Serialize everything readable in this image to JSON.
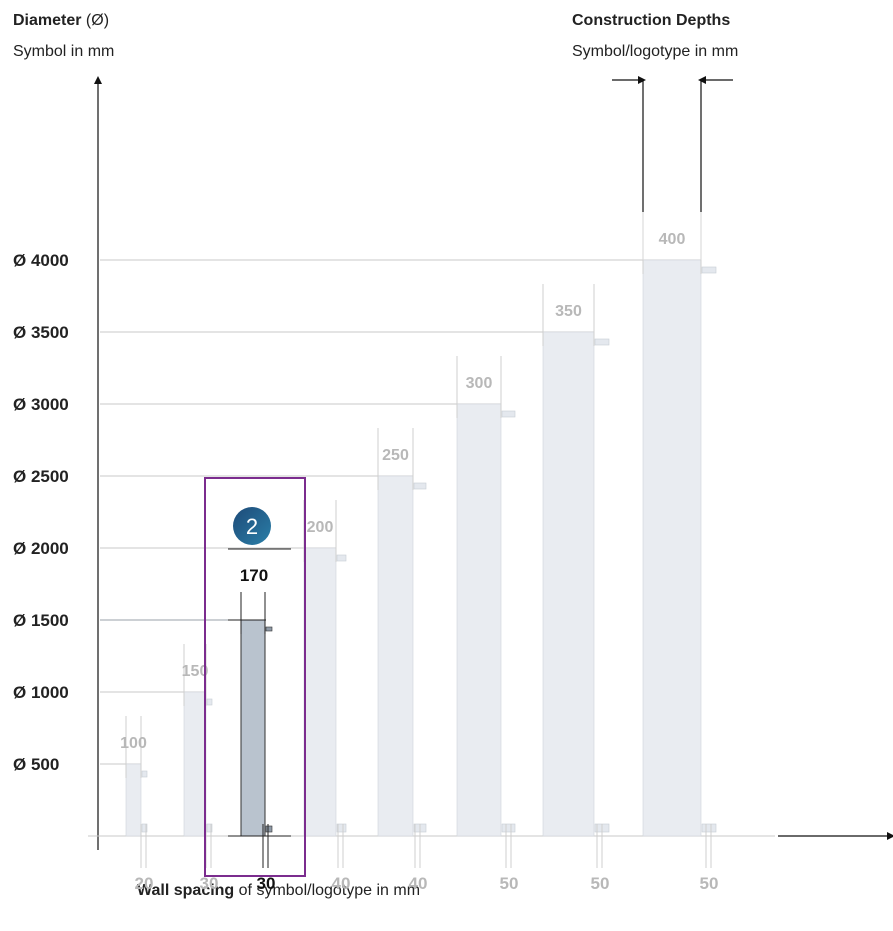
{
  "y_axis_title": {
    "bold": "Diameter",
    "rest": " (Ø)"
  },
  "y_axis_subtitle": "Symbol in mm",
  "right_title": "Construction Depths",
  "right_subtitle": "Symbol/logotype in mm",
  "x_axis_title": {
    "bold": "Wall spacing",
    "rest": " of symbol/logotype in mm"
  },
  "highlight": {
    "badge": "2",
    "depth": "170",
    "spacing": "30"
  },
  "colors": {
    "bar": "#e9ecf1",
    "bar_highlight": "#b9c3ce",
    "faded_text": "#b8b8b8",
    "highlight_box": "#7b2c8e",
    "badge": "#2a7fa8"
  },
  "chart_data": {
    "type": "bar",
    "ylabel": "Diameter (Ø) Symbol in mm",
    "xlabel": "Wall spacing of symbol/logotype in mm",
    "ylim": [
      0,
      4000
    ],
    "y_ticks": [
      {
        "value": 500,
        "label": "Ø   500"
      },
      {
        "value": 1000,
        "label": "Ø 1000"
      },
      {
        "value": 1500,
        "label": "Ø 1500"
      },
      {
        "value": 2000,
        "label": "Ø 2000"
      },
      {
        "value": 2500,
        "label": "Ø 2500"
      },
      {
        "value": 3000,
        "label": "Ø 3000"
      },
      {
        "value": 3500,
        "label": "Ø 3500"
      },
      {
        "value": 4000,
        "label": "Ø 4000"
      }
    ],
    "bars": [
      {
        "diameter": 500,
        "depth": "100",
        "spacing": "20",
        "highlight": false
      },
      {
        "diameter": 1000,
        "depth": "150",
        "spacing": "30",
        "highlight": false
      },
      {
        "diameter": 1500,
        "depth": "170",
        "spacing": "30",
        "highlight": true
      },
      {
        "diameter": 2000,
        "depth": "200",
        "spacing": "40",
        "highlight": false
      },
      {
        "diameter": 2500,
        "depth": "250",
        "spacing": "40",
        "highlight": false
      },
      {
        "diameter": 3000,
        "depth": "300",
        "spacing": "50",
        "highlight": false
      },
      {
        "diameter": 3500,
        "depth": "350",
        "spacing": "50",
        "highlight": false
      },
      {
        "diameter": 4000,
        "depth": "400",
        "spacing": "50",
        "highlight": false
      }
    ]
  }
}
